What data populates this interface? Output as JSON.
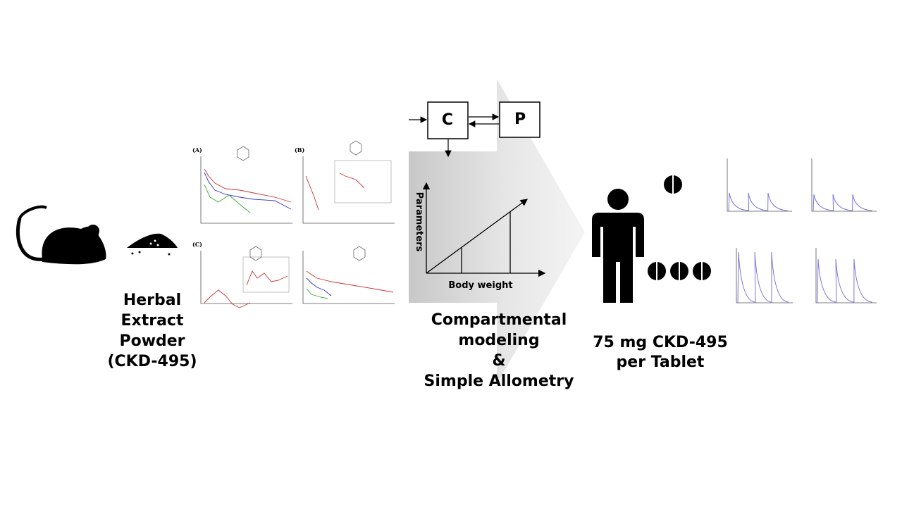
{
  "left": {
    "label_lines": [
      "Herbal",
      "Extract",
      "Powder",
      "(CKD-495)"
    ]
  },
  "panels": {
    "labels": [
      "(A)",
      "(B)",
      "(C)"
    ]
  },
  "model": {
    "compartments": [
      "C",
      "P"
    ],
    "y_axis": "Parameters",
    "x_axis": "Body weight",
    "method_lines": [
      "Compartmental",
      "modeling",
      "&",
      "Simple Allometry"
    ]
  },
  "right": {
    "label_lines": [
      "75 mg CKD-495",
      "per Tablet"
    ]
  }
}
